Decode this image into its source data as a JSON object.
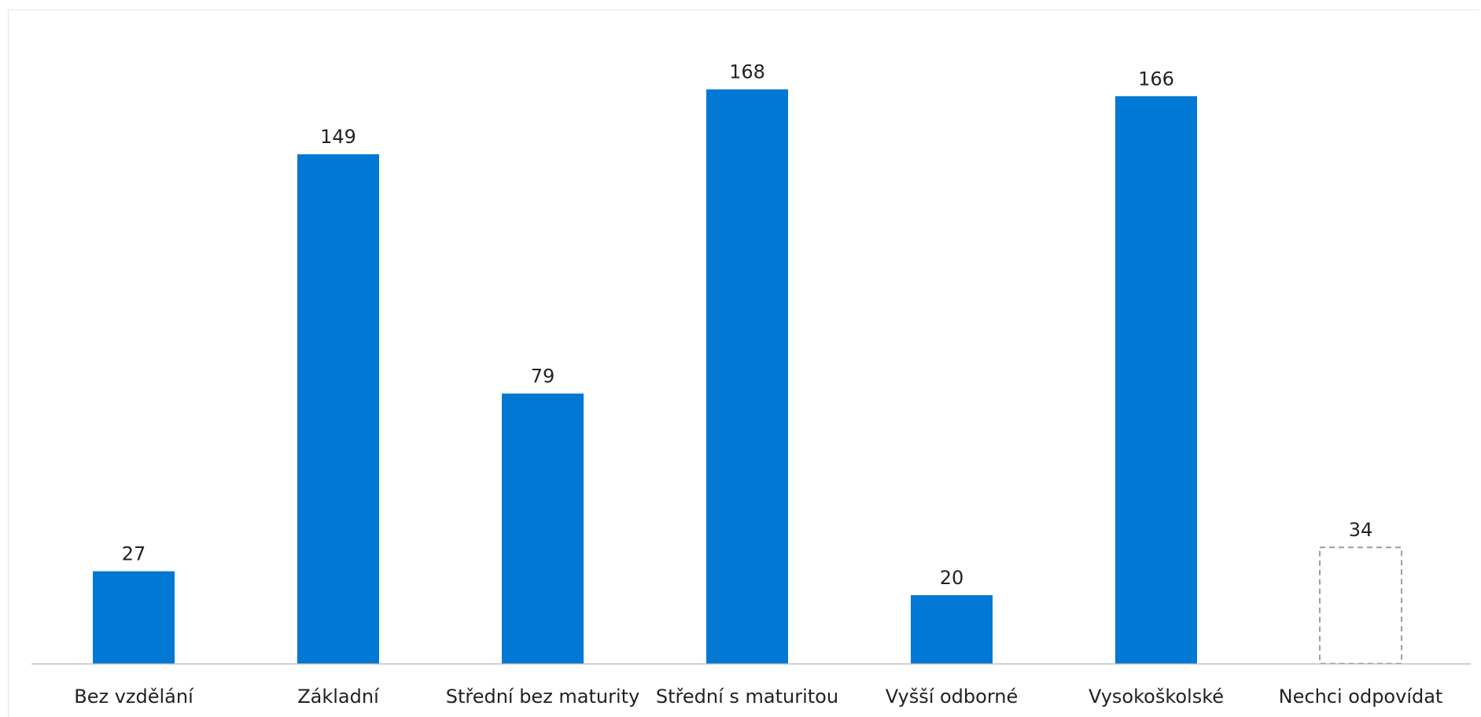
{
  "chart_data": {
    "type": "bar",
    "title": "",
    "xlabel": "",
    "ylabel": "",
    "categories": [
      "Bez vzdělání",
      "Základní",
      "Střední bez maturity",
      "Střední s maturitou",
      "Vyšší odborné",
      "Vysokoškolské",
      "Nechci odpovídat"
    ],
    "values": [
      27,
      149,
      79,
      168,
      20,
      166,
      34
    ],
    "data_labels": [
      "27",
      "149",
      "79",
      "168",
      "20",
      "166",
      "34"
    ],
    "ylim": [
      0,
      190
    ],
    "grid": false,
    "legend": "none",
    "bar_color": "#0078D4",
    "highlight": {
      "category": "Nechci odpovídat",
      "style": "dashed-outline",
      "outline_color": "#9e9e9e"
    },
    "axis_color": "#bdbdbd"
  }
}
